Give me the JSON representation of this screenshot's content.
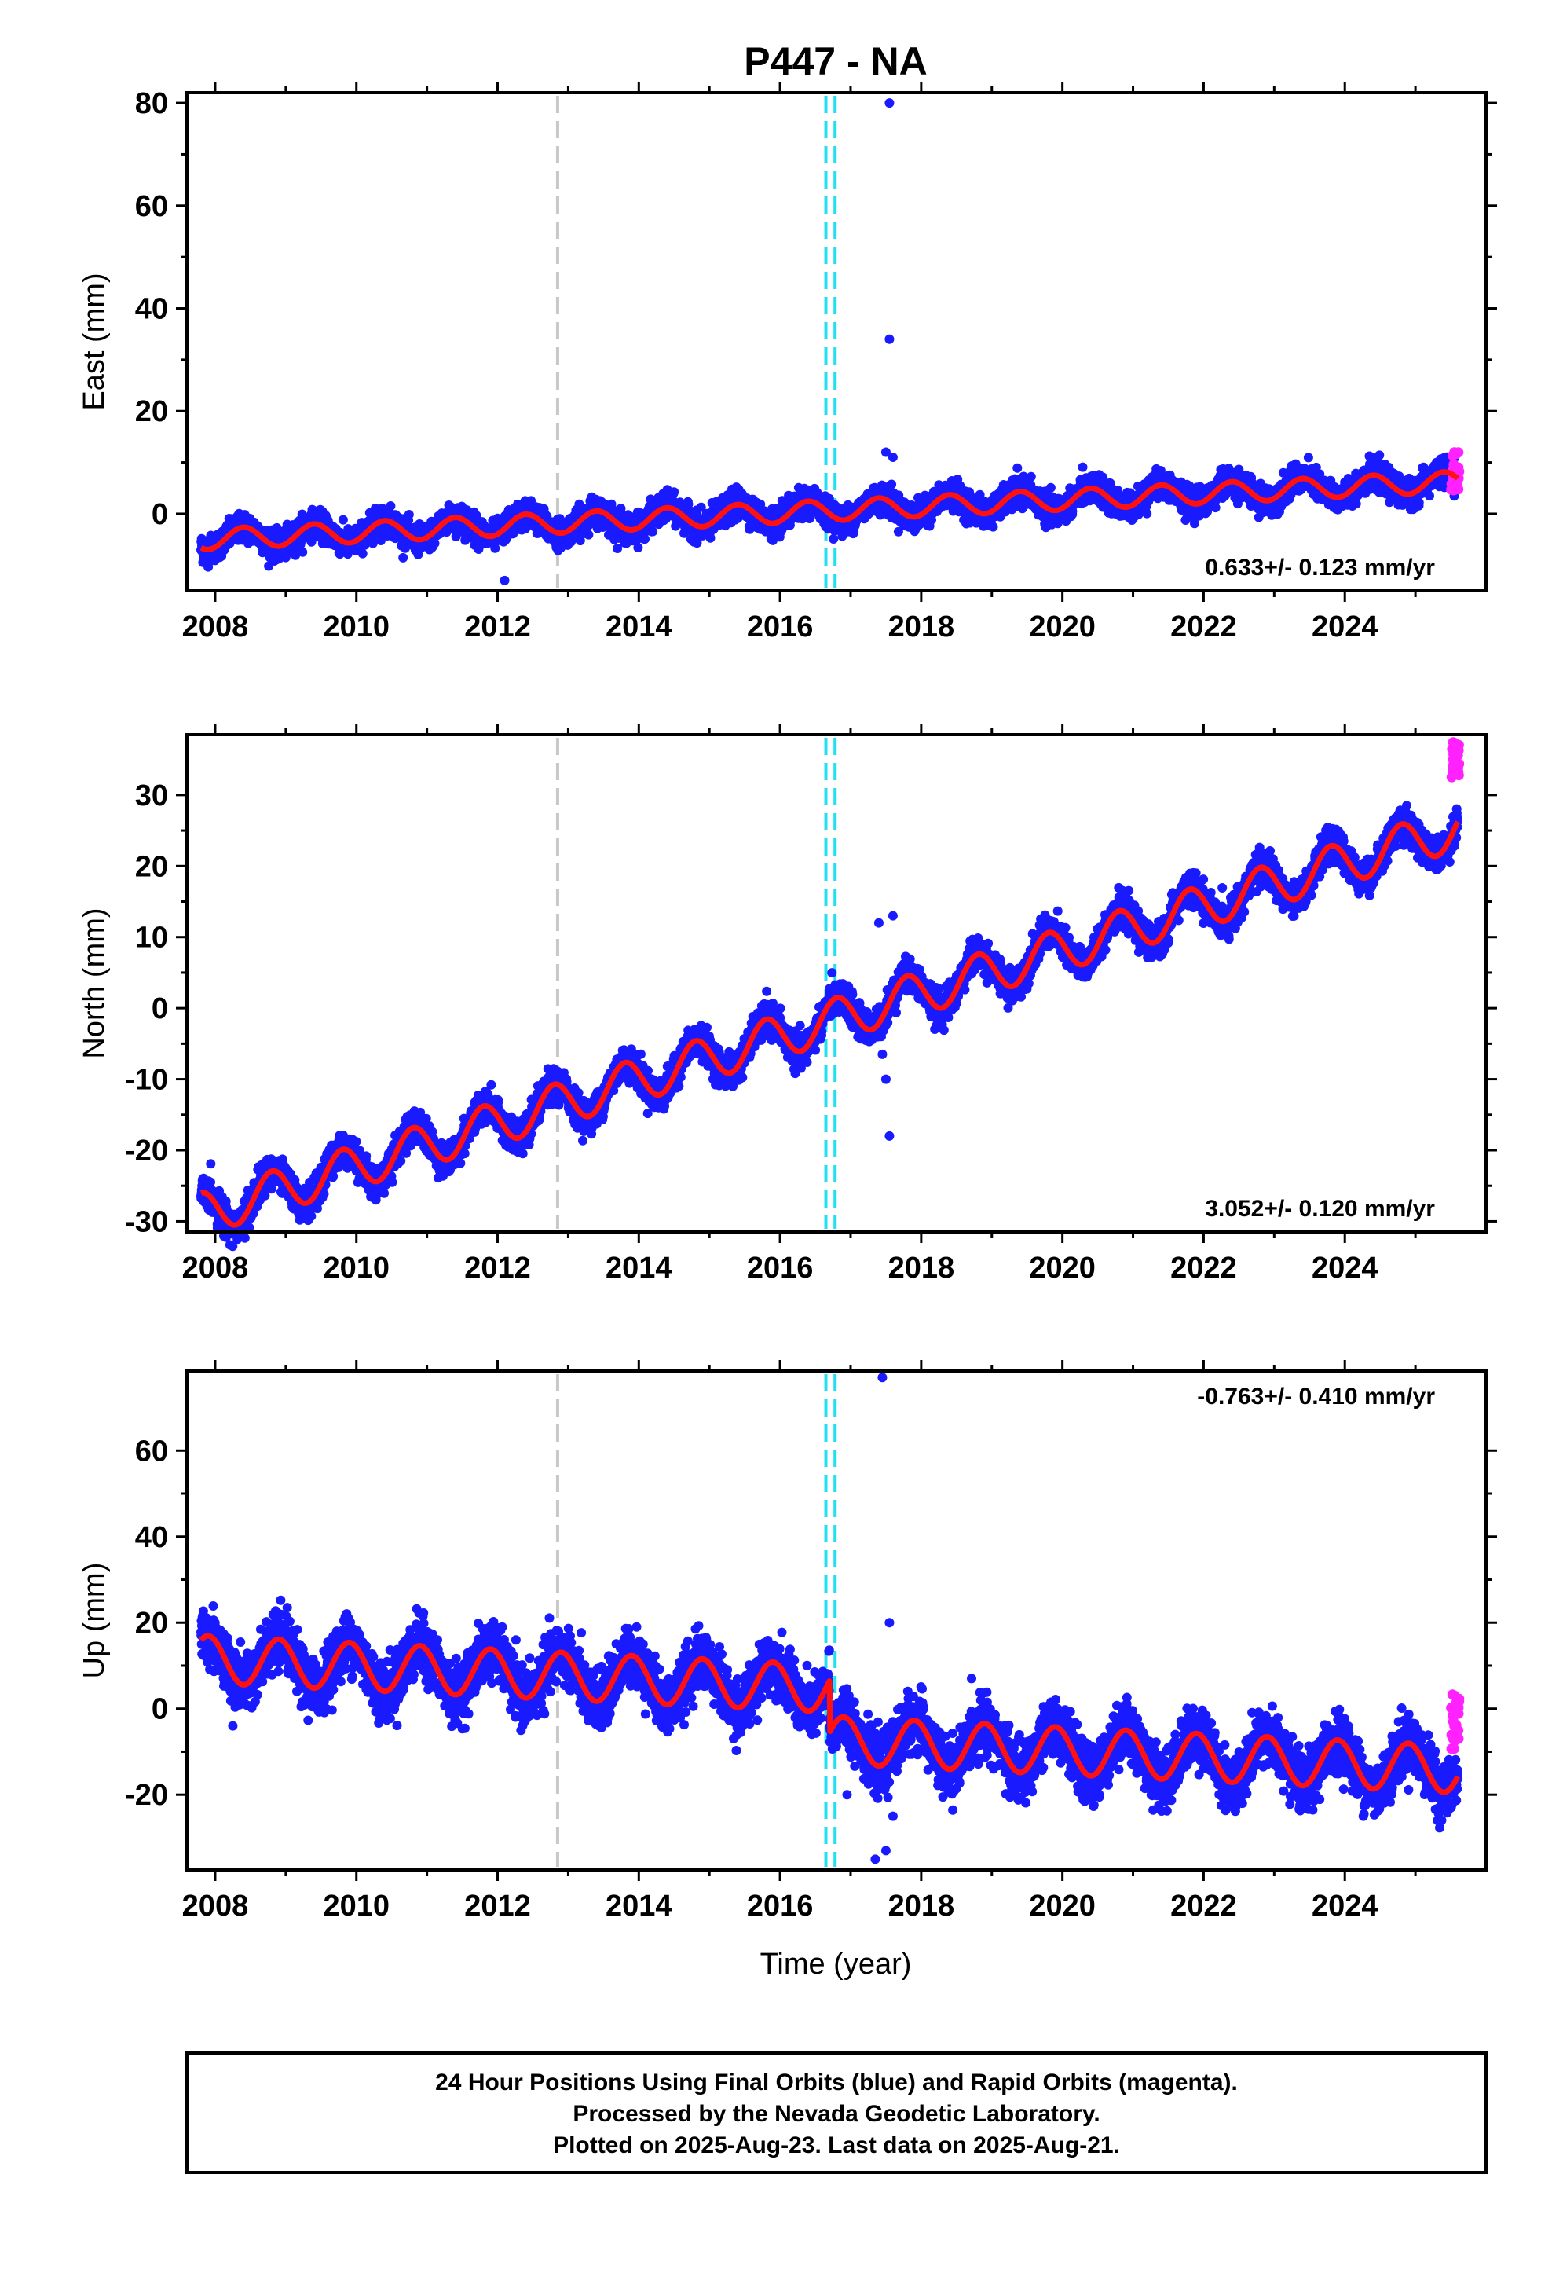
{
  "chart_data": {
    "title": "P447 - NA",
    "type": "scatter",
    "xlabel": "Time (year)",
    "xlim": [
      2007.6,
      2026.0
    ],
    "xticks": [
      2008,
      2010,
      2012,
      2014,
      2016,
      2018,
      2020,
      2022,
      2024
    ],
    "vertical_markers": {
      "gray_dashed": [
        2012.85
      ],
      "cyan_dashed": [
        2016.65,
        2016.78
      ]
    },
    "series_colors": {
      "final": "#1a1aff",
      "rapid": "#ff22ff",
      "fit": "#ff1111"
    },
    "panels": [
      {
        "ylabel": "East (mm)",
        "ylim": [
          -15,
          82
        ],
        "yticks": [
          0,
          20,
          40,
          60,
          80
        ],
        "rate_text": "0.633+/- 0.123 mm/yr",
        "rate_position": "bottom-right",
        "model": {
          "start": 2007.8,
          "end": 2025.6,
          "y0": -5.0,
          "slope": 0.633,
          "amp": 2.0,
          "phase": 0.15,
          "noise": 1.3,
          "offsets": []
        },
        "outliers": [
          [
            2017.55,
            80
          ],
          [
            2017.55,
            34
          ],
          [
            2017.5,
            12
          ],
          [
            2017.6,
            11
          ],
          [
            2012.1,
            -13
          ]
        ],
        "rapid": {
          "start": 2025.5,
          "end": 2025.62,
          "ymin": 4.5,
          "ymax": 12.5
        }
      },
      {
        "ylabel": "North (mm)",
        "ylim": [
          -31.5,
          38.5
        ],
        "yticks": [
          -30,
          -20,
          -10,
          0,
          10,
          20,
          30
        ],
        "rate_text": "3.052+/- 0.120 mm/yr",
        "rate_position": "bottom-right",
        "model": {
          "start": 2007.8,
          "end": 2025.6,
          "y0": -29.0,
          "slope": 3.052,
          "amp": 3.0,
          "phase": 0.55,
          "noise": 1.1,
          "offsets": []
        },
        "outliers": [
          [
            2017.45,
            -6.5
          ],
          [
            2017.5,
            -10
          ],
          [
            2017.55,
            -18
          ],
          [
            2017.6,
            13
          ],
          [
            2017.4,
            12
          ]
        ],
        "rapid": {
          "start": 2025.5,
          "end": 2025.62,
          "ymin": 32.5,
          "ymax": 37.5
        }
      },
      {
        "ylabel": "Up (mm)",
        "ylim": [
          -37.5,
          78.5
        ],
        "yticks": [
          -20,
          0,
          20,
          40,
          60
        ],
        "rate_text": "-0.763+/- 0.410 mm/yr",
        "rate_position": "top-right",
        "model": {
          "start": 2007.8,
          "end": 2025.6,
          "y0": 11.5,
          "slope": -0.763,
          "amp": 5.5,
          "phase": 0.65,
          "noise": 3.2,
          "offsets": [
            [
              2016.7,
              -12.0
            ]
          ]
        },
        "outliers": [
          [
            2017.45,
            77
          ],
          [
            2017.35,
            -35
          ],
          [
            2017.5,
            -33
          ],
          [
            2017.6,
            -25
          ],
          [
            2017.55,
            20
          ],
          [
            2008.25,
            -4
          ],
          [
            2016.95,
            -20
          ]
        ],
        "rapid": {
          "start": 2025.5,
          "end": 2025.62,
          "ymin": -10,
          "ymax": 5
        }
      }
    ]
  },
  "footer": {
    "line1": "24 Hour Positions Using Final Orbits (blue) and Rapid Orbits (magenta).",
    "line2": "Processed by the Nevada Geodetic Laboratory.",
    "line3": "Plotted on 2025-Aug-23. Last data on 2025-Aug-21."
  }
}
